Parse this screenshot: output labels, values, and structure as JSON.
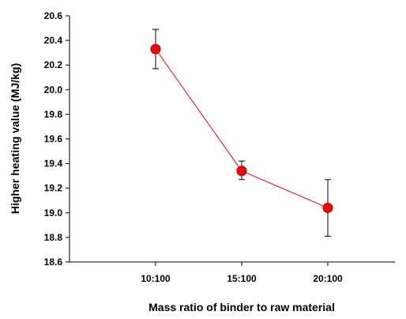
{
  "chart_data": {
    "type": "line",
    "title": "",
    "xlabel": "Mass ratio of binder to raw material",
    "ylabel": "Higher heating value (MJ/kg)",
    "categories": [
      "10:100",
      "15:100",
      "20:100"
    ],
    "series": [
      {
        "values": [
          20.33,
          19.34,
          19.04
        ],
        "error_low": [
          20.17,
          19.27,
          18.81
        ],
        "error_high": [
          20.49,
          19.42,
          19.27
        ],
        "line_color": "#ff0000",
        "marker_color": "#ff0000",
        "marker_edge_color": "#990000"
      }
    ],
    "ylim": [
      18.6,
      20.6
    ],
    "yticks": [
      "18.6",
      "18.8",
      "19.0",
      "19.2",
      "19.4",
      "19.6",
      "19.8",
      "20.0",
      "20.2",
      "20.4",
      "20.6"
    ],
    "grid": false,
    "legend": "none"
  }
}
